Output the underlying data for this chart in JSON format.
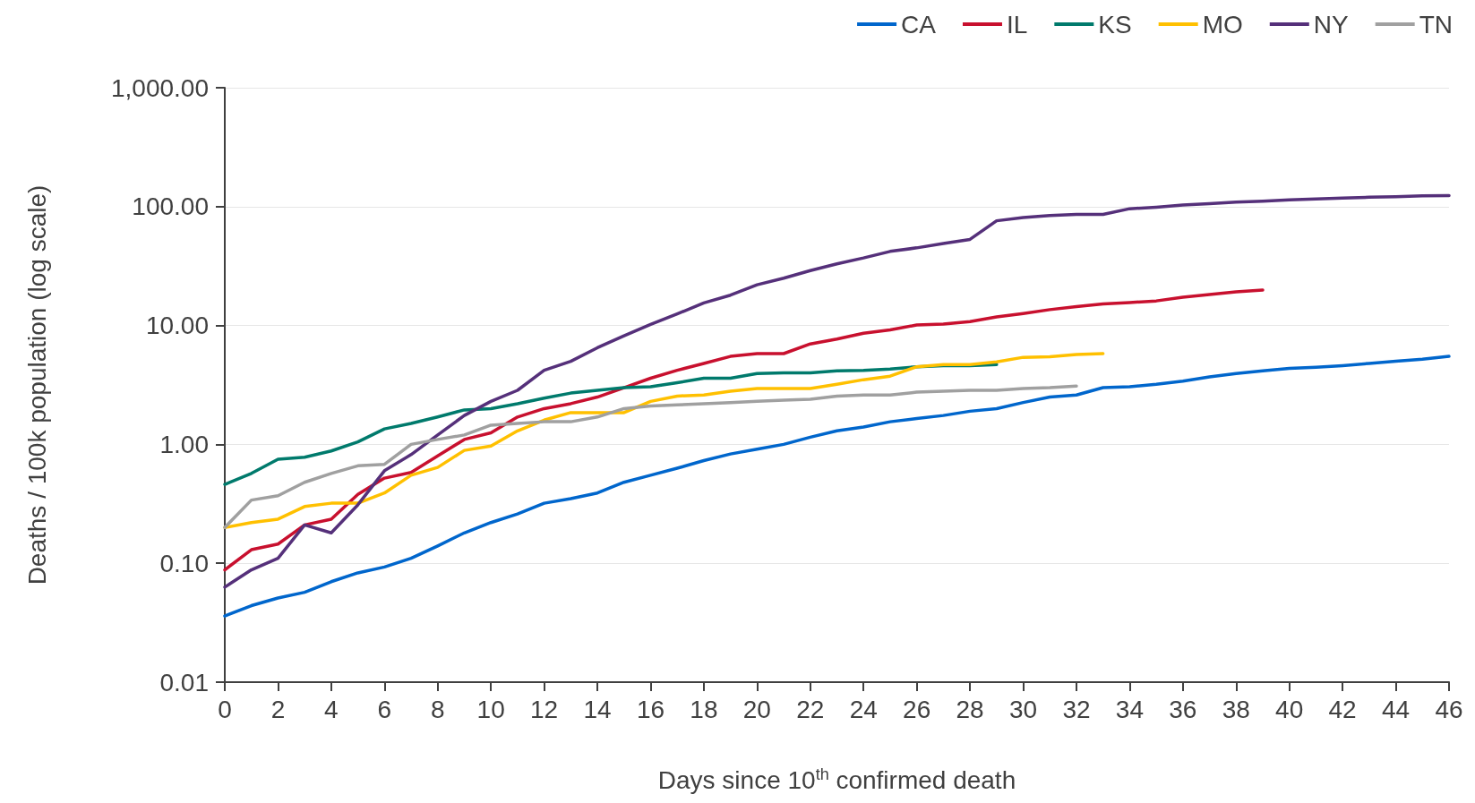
{
  "chart_data": {
    "type": "line",
    "xlabel": "Days since 10$^{th}$ confirmed death",
    "ylabel": "Deaths / 100k population (log scale)",
    "log": "y",
    "grid": "y",
    "legend": "top right",
    "marker": "none",
    "line_style": "solid",
    "x": [
      0,
      1,
      2,
      3,
      4,
      5,
      6,
      7,
      8,
      9,
      10,
      11,
      12,
      13,
      14,
      15,
      16,
      17,
      18,
      19,
      20,
      21,
      22,
      23,
      24,
      25,
      26,
      27,
      28,
      29,
      30,
      31,
      32,
      33,
      34,
      35,
      36,
      37,
      38,
      39,
      40,
      41,
      42,
      43,
      44,
      45,
      46
    ],
    "xlim": [
      0,
      46
    ],
    "xticks": [
      0,
      2,
      4,
      6,
      8,
      10,
      12,
      14,
      16,
      18,
      20,
      22,
      24,
      26,
      28,
      30,
      32,
      34,
      36,
      38,
      40,
      42,
      44,
      46
    ],
    "ylim": [
      0.01,
      1000
    ],
    "yticks": [
      {
        "value": 0.01,
        "label": "0.01"
      },
      {
        "value": 0.1,
        "label": "0.10"
      },
      {
        "value": 1,
        "label": "1.00"
      },
      {
        "value": 10,
        "label": "10.00"
      },
      {
        "value": 100,
        "label": "100.00"
      },
      {
        "value": 1000,
        "label": "1,000.00"
      }
    ],
    "series": [
      {
        "name": "CA",
        "color": "#0066cc",
        "values": [
          0.036,
          0.044,
          0.051,
          0.057,
          0.07,
          0.083,
          0.093,
          0.11,
          0.14,
          0.18,
          0.22,
          0.26,
          0.32,
          0.35,
          0.39,
          0.48,
          0.55,
          0.63,
          0.73,
          0.83,
          0.91,
          1.0,
          1.15,
          1.3,
          1.4,
          1.55,
          1.65,
          1.75,
          1.9,
          2.0,
          2.25,
          2.5,
          2.6,
          3.0,
          3.05,
          3.2,
          3.4,
          3.7,
          3.95,
          4.15,
          4.35,
          4.45,
          4.6,
          4.8,
          5.0,
          5.2,
          5.5
        ]
      },
      {
        "name": "IL",
        "color": "#c8102e",
        "x": [
          0,
          1,
          2,
          3,
          4,
          5,
          6,
          7,
          8,
          9,
          10,
          11,
          12,
          13,
          14,
          15,
          16,
          17,
          18,
          19,
          20,
          21,
          22,
          23,
          24,
          25,
          26,
          27,
          28,
          29,
          30,
          31,
          32,
          33,
          34,
          35,
          36,
          37,
          38,
          39
        ],
        "values": [
          0.088,
          0.13,
          0.145,
          0.21,
          0.235,
          0.38,
          0.52,
          0.58,
          0.8,
          1.1,
          1.25,
          1.7,
          2.0,
          2.2,
          2.5,
          3.0,
          3.6,
          4.2,
          4.8,
          5.5,
          5.8,
          5.8,
          7.0,
          7.7,
          8.6,
          9.2,
          10.1,
          10.3,
          10.8,
          11.8,
          12.6,
          13.6,
          14.4,
          15.2,
          15.6,
          16.1,
          17.3,
          18.2,
          19.2,
          19.9
        ]
      },
      {
        "name": "KS",
        "color": "#007a6c",
        "x": [
          0,
          1,
          2,
          3,
          4,
          5,
          6,
          7,
          8,
          9,
          10,
          11,
          12,
          13,
          14,
          15,
          16,
          17,
          18,
          19,
          20,
          21,
          22,
          23,
          24,
          25,
          26,
          27,
          28,
          29
        ],
        "values": [
          0.46,
          0.57,
          0.75,
          0.78,
          0.88,
          1.05,
          1.35,
          1.5,
          1.7,
          1.95,
          2.0,
          2.2,
          2.45,
          2.7,
          2.85,
          3.0,
          3.05,
          3.3,
          3.6,
          3.6,
          3.95,
          4.0,
          4.0,
          4.15,
          4.2,
          4.3,
          4.5,
          4.6,
          4.6,
          4.7
        ]
      },
      {
        "name": "MO",
        "color": "#ffc000",
        "x": [
          0,
          1,
          2,
          3,
          4,
          5,
          6,
          7,
          8,
          9,
          10,
          11,
          12,
          13,
          14,
          15,
          16,
          17,
          18,
          19,
          20,
          21,
          22,
          23,
          24,
          25,
          26,
          27,
          28,
          29,
          30,
          31,
          32,
          33
        ],
        "values": [
          0.2,
          0.22,
          0.235,
          0.3,
          0.32,
          0.32,
          0.39,
          0.55,
          0.64,
          0.89,
          0.97,
          1.3,
          1.6,
          1.85,
          1.85,
          1.85,
          2.3,
          2.55,
          2.6,
          2.8,
          2.95,
          2.95,
          2.95,
          3.2,
          3.5,
          3.75,
          4.5,
          4.7,
          4.7,
          4.95,
          5.4,
          5.45,
          5.7,
          5.8
        ]
      },
      {
        "name": "NY",
        "color": "#55307a",
        "values": [
          0.063,
          0.088,
          0.11,
          0.21,
          0.18,
          0.31,
          0.6,
          0.82,
          1.2,
          1.75,
          2.3,
          2.85,
          4.2,
          5.0,
          6.5,
          8.2,
          10.2,
          12.5,
          15.5,
          18,
          22,
          25,
          29,
          33,
          37,
          42,
          45,
          49,
          53,
          76,
          81,
          84,
          86,
          86,
          96,
          99,
          103,
          106,
          109,
          111,
          114,
          116,
          118,
          120,
          121,
          123,
          124
        ]
      },
      {
        "name": "TN",
        "color": "#a0a0a0",
        "x": [
          0,
          1,
          2,
          3,
          4,
          5,
          6,
          7,
          8,
          9,
          10,
          11,
          12,
          13,
          14,
          15,
          16,
          17,
          18,
          19,
          20,
          21,
          22,
          23,
          24,
          25,
          26,
          27,
          28,
          29,
          30,
          31,
          32
        ],
        "values": [
          0.2,
          0.34,
          0.37,
          0.48,
          0.57,
          0.66,
          0.68,
          1.0,
          1.1,
          1.2,
          1.45,
          1.5,
          1.55,
          1.55,
          1.7,
          2.0,
          2.1,
          2.15,
          2.2,
          2.25,
          2.3,
          2.35,
          2.4,
          2.55,
          2.6,
          2.6,
          2.75,
          2.8,
          2.85,
          2.85,
          2.95,
          3.0,
          3.1
        ]
      }
    ]
  }
}
